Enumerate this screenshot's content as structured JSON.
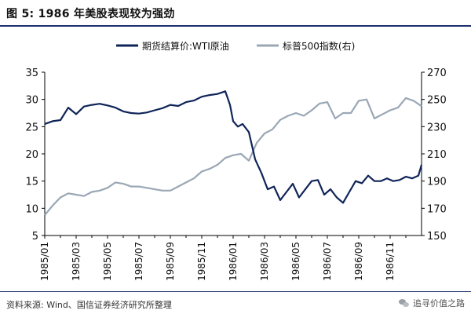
{
  "figure": {
    "title": "图 5:  1986 年美股表现较为强劲",
    "source": "资料来源: Wind、国信证券经济研究所整理",
    "watermark": "追寻价值之路"
  },
  "colors": {
    "wti": "#0f2458",
    "sp500": "#9aa7b5",
    "axis": "#000000"
  },
  "chart_data": {
    "type": "line",
    "title": "1986 年美股表现较为强劲",
    "legend_position": "top",
    "grid": false,
    "x_ticks": [
      "1985/01",
      "1985/03",
      "1985/05",
      "1985/07",
      "1985/09",
      "1985/11",
      "1986/01",
      "1986/03",
      "1986/05",
      "1986/07",
      "1986/09",
      "1986/11"
    ],
    "x_range": [
      0,
      24
    ],
    "y_left": {
      "range": [
        5,
        35
      ],
      "ticks": [
        5,
        10,
        15,
        20,
        25,
        30,
        35
      ]
    },
    "y_right": {
      "range": [
        150,
        270
      ],
      "ticks": [
        150,
        170,
        190,
        210,
        230,
        250,
        270
      ]
    },
    "series": [
      {
        "name": "期货结算价:WTI原油",
        "axis": "left",
        "x": [
          0,
          0.5,
          1,
          1.5,
          2,
          2.5,
          3,
          3.5,
          4,
          4.5,
          5,
          5.5,
          6,
          6.5,
          7,
          7.5,
          8,
          8.5,
          9,
          9.5,
          10,
          10.5,
          11,
          11.5,
          11.8,
          12,
          12.3,
          12.6,
          13,
          13.4,
          13.8,
          14.2,
          14.6,
          15,
          15.4,
          15.8,
          16.2,
          16.6,
          17,
          17.4,
          17.8,
          18.2,
          18.6,
          19,
          19.4,
          19.8,
          20.2,
          20.6,
          21,
          21.4,
          21.8,
          22.2,
          22.6,
          23,
          23.4,
          23.8,
          24
        ],
        "y": [
          25.5,
          26,
          26.2,
          28.5,
          27.3,
          28.7,
          29,
          29.2,
          28.9,
          28.5,
          27.8,
          27.5,
          27.4,
          27.6,
          28,
          28.4,
          29,
          28.8,
          29.5,
          29.8,
          30.5,
          30.8,
          31,
          31.5,
          29,
          26,
          25,
          25.5,
          24,
          19,
          16.5,
          13.5,
          14,
          11.5,
          13,
          14.5,
          12,
          13.5,
          15,
          15.2,
          12.5,
          13.5,
          12,
          11,
          13,
          15,
          14.6,
          16,
          15,
          15,
          15.5,
          15,
          15.2,
          15.8,
          15.5,
          16,
          18
        ]
      },
      {
        "name": "标普500指数(右)",
        "axis": "right",
        "x": [
          0,
          0.5,
          1,
          1.5,
          2,
          2.5,
          3,
          3.5,
          4,
          4.5,
          5,
          5.5,
          6,
          6.5,
          7,
          7.5,
          8,
          8.5,
          9,
          9.5,
          10,
          10.5,
          11,
          11.5,
          12,
          12.5,
          13,
          13.5,
          14,
          14.5,
          15,
          15.5,
          16,
          16.5,
          17,
          17.5,
          18,
          18.5,
          19,
          19.5,
          20,
          20.5,
          21,
          21.5,
          22,
          22.5,
          23,
          23.5,
          24
        ],
        "y": [
          165,
          172,
          178,
          181,
          180,
          179,
          182,
          183,
          185,
          189,
          188,
          186,
          186,
          185,
          184,
          183,
          183,
          186,
          189,
          192,
          197,
          199,
          202,
          207,
          209,
          210,
          205,
          218,
          225,
          228,
          235,
          238,
          240,
          238,
          242,
          247,
          248,
          236,
          240,
          240,
          249,
          250,
          236,
          239,
          242,
          244,
          251,
          249,
          245
        ]
      }
    ]
  }
}
